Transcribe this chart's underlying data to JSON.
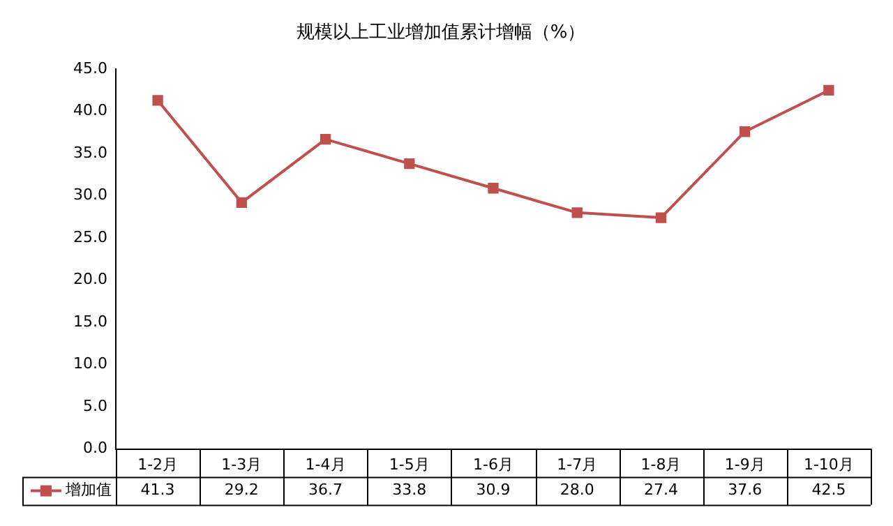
{
  "chart_data": {
    "type": "line",
    "title": "规模以上工业增加值累计增幅（%）",
    "categories": [
      "1-2月",
      "1-3月",
      "1-4月",
      "1-5月",
      "1-6月",
      "1-7月",
      "1-8月",
      "1-9月",
      "1-10月"
    ],
    "series": [
      {
        "name": "增加值",
        "color": "#c0504d",
        "values": [
          41.3,
          29.2,
          36.7,
          33.8,
          30.9,
          28.0,
          27.4,
          37.6,
          42.5
        ],
        "value_labels": [
          "41.3",
          "29.2",
          "36.7",
          "33.8",
          "30.9",
          "28.0",
          "27.4",
          "37.6",
          "42.5"
        ]
      }
    ],
    "ylim": [
      0,
      45
    ],
    "yticks": [
      {
        "value": 0,
        "label": "0.0"
      },
      {
        "value": 5,
        "label": "5.0"
      },
      {
        "value": 10,
        "label": "10.0"
      },
      {
        "value": 15,
        "label": "15.0"
      },
      {
        "value": 20,
        "label": "20.0"
      },
      {
        "value": 25,
        "label": "25.0"
      },
      {
        "value": 30,
        "label": "30.0"
      },
      {
        "value": 35,
        "label": "35.0"
      },
      {
        "value": 40,
        "label": "40.0"
      },
      {
        "value": 45,
        "label": "45.0"
      }
    ],
    "grid": false,
    "legend": "bottom left",
    "marker": "square",
    "line_style": "solid"
  }
}
